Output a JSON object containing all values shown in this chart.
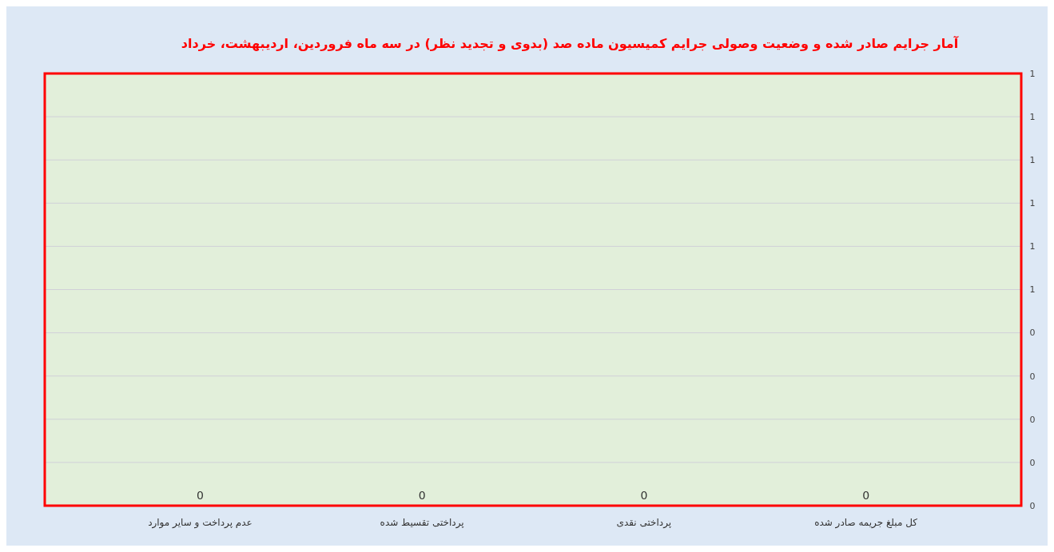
{
  "chart_data": {
    "type": "bar",
    "title": "آمار جرایم صادر شده و وضعیت وصولی جرایم کمیسیون ماده صد (بدوی و تجدید نظر) در سه ماه فروردین، اردیبهشت، خرداد",
    "categories": [
      "عدم پرداخت و سایر موارد",
      "پرداختی تقسیط شده",
      "پرداختی نقدی",
      "کل مبلغ جریمه صادر شده"
    ],
    "values": [
      0,
      0,
      0,
      0
    ],
    "data_labels": true,
    "grid": "y",
    "ylim": [
      0,
      1
    ],
    "yticks": [
      0,
      {
        "value": 0.1,
        "label": "0"
      },
      {
        "value": 0.2,
        "label": "0"
      },
      {
        "value": 0.3,
        "label": "0"
      },
      {
        "value": 0.4,
        "label": "0"
      },
      {
        "value": 0.5,
        "label": "1"
      },
      {
        "value": 0.6,
        "label": "1"
      },
      {
        "value": 0.7,
        "label": "1"
      },
      {
        "value": 0.8,
        "label": "1"
      },
      {
        "value": 0.9,
        "label": "1"
      },
      1
    ]
  }
}
